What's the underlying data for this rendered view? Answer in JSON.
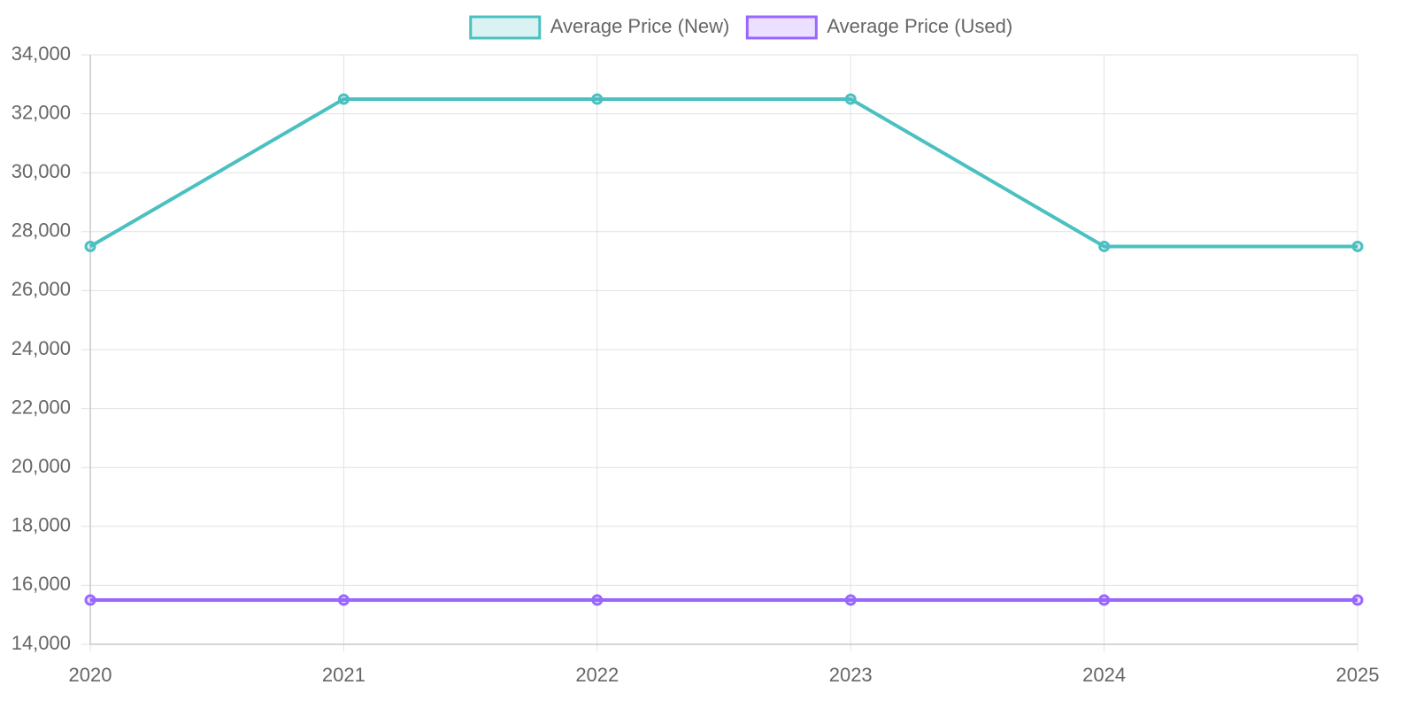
{
  "chart_data": {
    "type": "line",
    "categories": [
      "2020",
      "2021",
      "2022",
      "2023",
      "2024",
      "2025"
    ],
    "series": [
      {
        "name": "Average Price (New)",
        "color": "#4bc0c0",
        "values": [
          27500,
          32500,
          32500,
          32500,
          27500,
          27500
        ]
      },
      {
        "name": "Average Price (Used)",
        "color": "#9966ff",
        "values": [
          15500,
          15500,
          15500,
          15500,
          15500,
          15500
        ]
      }
    ],
    "ylim": [
      14000,
      34000
    ],
    "yticks": [
      {
        "value": 14000,
        "label": "14,000"
      },
      {
        "value": 16000,
        "label": "16,000"
      },
      {
        "value": 18000,
        "label": "18,000"
      },
      {
        "value": 20000,
        "label": "20,000"
      },
      {
        "value": 22000,
        "label": "22,000"
      },
      {
        "value": 24000,
        "label": "24,000"
      },
      {
        "value": 26000,
        "label": "26,000"
      },
      {
        "value": 28000,
        "label": "28,000"
      },
      {
        "value": 30000,
        "label": "30,000"
      },
      {
        "value": 32000,
        "label": "32,000"
      },
      {
        "value": 34000,
        "label": "34,000"
      }
    ],
    "grid": true,
    "legend": "top"
  }
}
